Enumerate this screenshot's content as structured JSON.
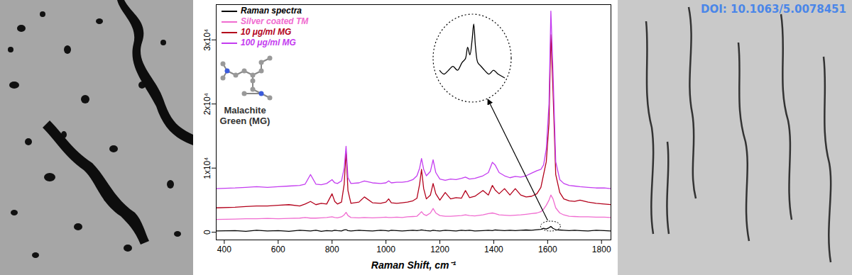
{
  "chart_data": {
    "type": "line",
    "x_label": "Raman Shift, cm⁻¹",
    "x": [
      370,
      440,
      480,
      520,
      560,
      600,
      640,
      680,
      700,
      720,
      740,
      760,
      780,
      800,
      810,
      820,
      835,
      845,
      852,
      859,
      870,
      900,
      920,
      950,
      980,
      1000,
      1010,
      1020,
      1040,
      1060,
      1080,
      1100,
      1115,
      1125,
      1132,
      1140,
      1150,
      1165,
      1175,
      1185,
      1200,
      1220,
      1240,
      1260,
      1280,
      1295,
      1310,
      1330,
      1360,
      1380,
      1395,
      1405,
      1420,
      1440,
      1460,
      1480,
      1500,
      1520,
      1540,
      1560,
      1575,
      1585,
      1595,
      1605,
      1612,
      1620,
      1630,
      1645,
      1660,
      1680,
      1700,
      1720,
      1750,
      1780,
      1810,
      1835
    ],
    "series": [
      {
        "name": "Raman spectra",
        "color": "#000000",
        "values": [
          200,
          250,
          150,
          300,
          200,
          250,
          150,
          300,
          250,
          200,
          300,
          150,
          250,
          200,
          300,
          250,
          200,
          350,
          400,
          250,
          200,
          300,
          250,
          200,
          300,
          250,
          200,
          300,
          250,
          200,
          250,
          300,
          250,
          300,
          350,
          300,
          250,
          200,
          300,
          250,
          200,
          300,
          250,
          200,
          300,
          250,
          300,
          200,
          250,
          300,
          250,
          350,
          300,
          250,
          300,
          250,
          300,
          350,
          300,
          400,
          450,
          600,
          500,
          700,
          900,
          600,
          400,
          350,
          300,
          250,
          300,
          250,
          200,
          300,
          250,
          200
        ]
      },
      {
        "name": "Silver coated TM",
        "color": "#f06bd0",
        "values": [
          2000,
          2050,
          2100,
          2100,
          2150,
          2100,
          2150,
          2200,
          2300,
          2200,
          2200,
          2250,
          2300,
          2400,
          2300,
          2250,
          2400,
          2700,
          3100,
          2600,
          2300,
          2250,
          2300,
          2250,
          2300,
          2350,
          2300,
          2300,
          2350,
          2300,
          2400,
          2450,
          2500,
          2900,
          3200,
          2800,
          2600,
          3000,
          3700,
          3000,
          2600,
          2500,
          2500,
          2550,
          2600,
          2700,
          2600,
          2550,
          2700,
          2900,
          3000,
          2900,
          2700,
          2650,
          2600,
          2650,
          2700,
          2800,
          2900,
          3000,
          3200,
          3600,
          4200,
          5000,
          5800,
          5200,
          3800,
          3000,
          2700,
          2500,
          2450,
          2400,
          2400,
          2350,
          2350,
          2300
        ]
      },
      {
        "name": "10 μg/ml MG",
        "color": "#b3001b",
        "values": [
          3800,
          3900,
          4000,
          4100,
          4100,
          4200,
          4300,
          4100,
          4400,
          4800,
          4300,
          4500,
          4400,
          6000,
          4800,
          4400,
          4700,
          7500,
          12600,
          6500,
          4500,
          4700,
          5500,
          4600,
          4500,
          4700,
          5200,
          4600,
          4500,
          4600,
          4700,
          4900,
          5300,
          7500,
          9800,
          6800,
          5200,
          5800,
          7600,
          6000,
          5000,
          6200,
          5200,
          5400,
          5300,
          6500,
          5400,
          5600,
          6500,
          5800,
          7300,
          6600,
          6000,
          6800,
          5800,
          6800,
          5800,
          5500,
          5600,
          6000,
          7000,
          9000,
          11000,
          17000,
          30800,
          22000,
          9000,
          6200,
          5200,
          4900,
          4800,
          5000,
          4700,
          4500,
          4400,
          4300
        ]
      },
      {
        "name": "100 μg/ml MG",
        "color": "#c43cf0",
        "values": [
          6800,
          6900,
          7000,
          7100,
          7000,
          7100,
          7200,
          7300,
          7500,
          9000,
          7500,
          7400,
          7600,
          8200,
          7700,
          7600,
          8000,
          10000,
          13400,
          8500,
          7600,
          7700,
          8000,
          7700,
          7600,
          7700,
          8000,
          7700,
          7800,
          7800,
          7900,
          8200,
          8800,
          10000,
          11500,
          9800,
          8800,
          9500,
          11300,
          9300,
          8300,
          8100,
          8300,
          8200,
          8400,
          8600,
          8300,
          8400,
          8800,
          9300,
          10900,
          10500,
          9300,
          8800,
          8500,
          8700,
          8600,
          8800,
          9200,
          9600,
          9800,
          10500,
          13000,
          20000,
          34500,
          25000,
          11000,
          8200,
          7600,
          7300,
          7200,
          7100,
          7000,
          6900,
          6900,
          6800
        ]
      }
    ],
    "xlim": [
      370,
      1835
    ],
    "xticks": [
      400,
      600,
      800,
      1000,
      1200,
      1400,
      1600,
      1800
    ],
    "ylim": [
      -1200,
      35500
    ],
    "yticks": [
      0,
      {
        "value": 10000,
        "label": "1x10⁴"
      },
      {
        "value": 20000,
        "label": "2x10⁴"
      },
      {
        "value": 30000,
        "label": "3x10⁴"
      }
    ],
    "grid": false,
    "legend": "upper left",
    "annotations": [
      "Malachite Green (MG)"
    ]
  },
  "doi": "DOI: 10.1063/5.0078451"
}
